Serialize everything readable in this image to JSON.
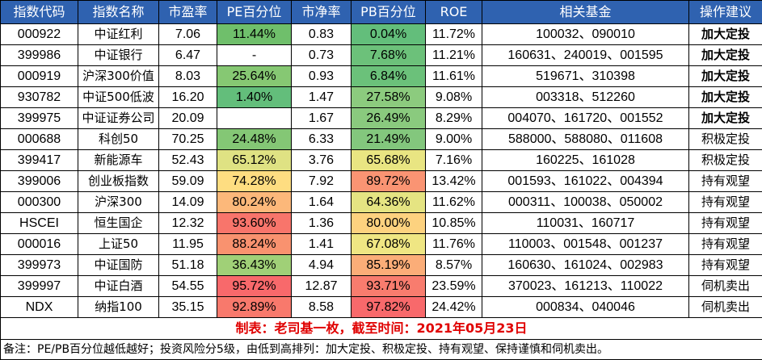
{
  "headers": [
    "指数代码",
    "指数名称",
    "市盈率",
    "PE百分位",
    "市净率",
    "PB百分位",
    "ROE",
    "相关基金",
    "操作建议"
  ],
  "rows": [
    {
      "code": "000922",
      "name": "中证红利",
      "pe": "7.06",
      "pe_pct": "11.44%",
      "pe_color": "#6fbf6b",
      "pb": "0.83",
      "pb_pct": "0.04%",
      "pb_color": "#63be7b",
      "roe": "11.72%",
      "funds": "100032、090010",
      "advice": "加大定投",
      "advice_bold": true
    },
    {
      "code": "399986",
      "name": "中证银行",
      "pe": "6.47",
      "pe_pct": "-",
      "pe_color": "#ffffff",
      "pb": "0.73",
      "pb_pct": "7.68%",
      "pb_color": "#6cc17a",
      "roe": "11.21%",
      "funds": "160631、240019、001595",
      "advice": "加大定投",
      "advice_bold": true
    },
    {
      "code": "000919",
      "name": "沪深300价值",
      "pe": "8.03",
      "pe_pct": "25.64%",
      "pe_color": "#86c873",
      "pb": "0.93",
      "pb_pct": "6.84%",
      "pb_color": "#6bc17a",
      "roe": "11.61%",
      "funds": "519671、310398",
      "advice": "加大定投",
      "advice_bold": true
    },
    {
      "code": "930782",
      "name": "中证500低波",
      "pe": "16.20",
      "pe_pct": "1.40%",
      "pe_color": "#63be7b",
      "pb": "1.47",
      "pb_pct": "27.58%",
      "pb_color": "#8ccb7e",
      "roe": "9.08%",
      "funds": "003318、512260",
      "advice": "加大定投",
      "advice_bold": true
    },
    {
      "code": "399975",
      "name": "中证证券公司",
      "pe": "20.09",
      "pe_pct": "",
      "pe_color": "#ffffff",
      "pb": "1.67",
      "pb_pct": "26.49%",
      "pb_color": "#8aca7e",
      "roe": "8.29%",
      "funds": "004070、161720、001552",
      "advice": "加大定投",
      "advice_bold": true
    },
    {
      "code": "000688",
      "name": "科创50",
      "pe": "70.25",
      "pe_pct": "24.48%",
      "pe_color": "#84c775",
      "pb": "6.33",
      "pb_pct": "21.49%",
      "pb_color": "#83c77d",
      "roe": "9.00%",
      "funds": "588000、588080、011608",
      "advice": "积极定投",
      "advice_bold": false
    },
    {
      "code": "399417",
      "name": "新能源车",
      "pe": "52.43",
      "pe_pct": "65.12%",
      "pe_color": "#dfe283",
      "pb": "3.76",
      "pb_pct": "65.68%",
      "pb_color": "#e9e582",
      "roe": "7.16%",
      "funds": "160225、161028",
      "advice": "积极定投",
      "advice_bold": false
    },
    {
      "code": "399006",
      "name": "创业板指数",
      "pe": "59.09",
      "pe_pct": "74.28%",
      "pe_color": "#fedd81",
      "pb": "7.92",
      "pb_pct": "89.72%",
      "pb_color": "#fa9473",
      "roe": "13.42%",
      "funds": "001593、161022、004394",
      "advice": "持有观望",
      "advice_bold": false
    },
    {
      "code": "000300",
      "name": "沪深300",
      "pe": "14.09",
      "pe_pct": "80.24%",
      "pe_color": "#fcb87a",
      "pb": "1.64",
      "pb_pct": "64.36%",
      "pb_color": "#e5e482",
      "roe": "11.62%",
      "funds": "000311、100038、050002",
      "advice": "持有观望",
      "advice_bold": false
    },
    {
      "code": "HSCEI",
      "name": "恒生国企",
      "pe": "12.32",
      "pe_pct": "93.60%",
      "pe_color": "#f8756b",
      "pb": "1.36",
      "pb_pct": "80.00%",
      "pb_color": "#fdd27f",
      "roe": "10.85%",
      "funds": "110031、160717",
      "advice": "持有观望",
      "advice_bold": false
    },
    {
      "code": "000016",
      "name": "上证50",
      "pe": "11.95",
      "pe_pct": "88.24%",
      "pe_color": "#f9926f",
      "pb": "1.41",
      "pb_pct": "67.08%",
      "pb_color": "#efe683",
      "roe": "11.76%",
      "funds": "110003、001548、001237",
      "advice": "持有观望",
      "advice_bold": false
    },
    {
      "code": "399973",
      "name": "中证国防",
      "pe": "51.18",
      "pe_pct": "36.43%",
      "pe_color": "#a0d077",
      "pb": "4.94",
      "pb_pct": "85.19%",
      "pb_color": "#fbad78",
      "roe": "8.57%",
      "funds": "160630、161024、002983",
      "advice": "持有观望",
      "advice_bold": false
    },
    {
      "code": "399997",
      "name": "中证白酒",
      "pe": "54.55",
      "pe_pct": "95.72%",
      "pe_color": "#f8696b",
      "pb": "12.87",
      "pb_pct": "93.71%",
      "pb_color": "#f87c6e",
      "roe": "23.59%",
      "funds": "370023、161213、110022",
      "advice": "伺机卖出",
      "advice_bold": false
    },
    {
      "code": "NDX",
      "name": "纳指100",
      "pe": "35.15",
      "pe_pct": "92.89%",
      "pe_color": "#f8796c",
      "pb": "8.58",
      "pb_pct": "97.82%",
      "pb_color": "#f8696b",
      "roe": "24.42%",
      "funds": "000834、040046",
      "advice": "伺机卖出",
      "advice_bold": false
    }
  ],
  "credit": "制表：老司基一枚，截至时间：2021年05月23日",
  "note": "备注：PE/PB百分位越低越好；投资风险分5级，由低到高排列：加大定投、积极定投、持有观望、保持谨慎和伺机卖出。",
  "colors": {
    "header_bg": "#2f62b0",
    "header_text": "#ffffff",
    "credit_text": "#e00000"
  }
}
